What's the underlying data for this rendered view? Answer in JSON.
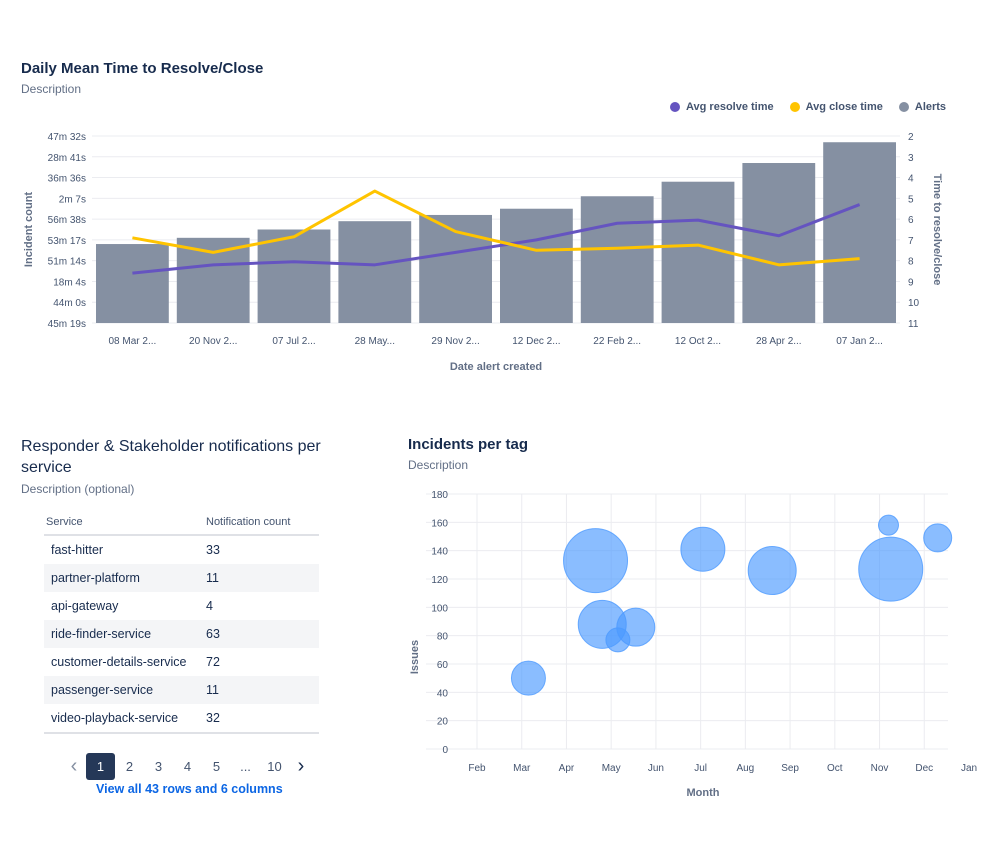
{
  "card1": {
    "title": "Daily Mean Time to Resolve/Close",
    "description": "Description",
    "legend": [
      {
        "label": "Avg resolve time",
        "color": "#6554c0"
      },
      {
        "label": "Avg close time",
        "color": "#ffc400"
      },
      {
        "label": "Alerts",
        "color": "#8590a2"
      }
    ]
  },
  "card2": {
    "title": "Responder & Stakeholder notifications per service",
    "description": "Description (optional)",
    "table": {
      "columns": [
        "Service",
        "Notification count"
      ],
      "rows": [
        [
          "fast-hitter",
          "33"
        ],
        [
          "partner-platform",
          "11"
        ],
        [
          "api-gateway",
          "4"
        ],
        [
          "ride-finder-service",
          "63"
        ],
        [
          "customer-details-service",
          "72"
        ],
        [
          "passenger-service",
          "11"
        ],
        [
          "video-playback-service",
          "32"
        ]
      ]
    },
    "pagination": {
      "prev": "‹",
      "pages": [
        "1",
        "2",
        "3",
        "4",
        "5",
        "...",
        "10"
      ],
      "current": "1",
      "next": "›"
    },
    "view_all": "View all 43 rows and 6 columns"
  },
  "card3": {
    "title": "Incidents per tag",
    "description": "Description"
  },
  "chart_data": [
    {
      "type": "bar+line",
      "title": "Daily Mean Time to Resolve/Close",
      "xlabel": "Date alert created",
      "ylabel": "Incident count",
      "y2label": "Time to resolve/close",
      "categories": [
        "08 Mar 2...",
        "20 Nov 2...",
        "07 Jul 2...",
        "28 May...",
        "29 Nov 2...",
        "12 Dec 2...",
        "22 Feb 2...",
        "12 Oct 2...",
        "28 Apr 2...",
        "07 Jan 2..."
      ],
      "y_tick_labels": [
        "47m 32s",
        "28m 41s",
        "36m 36s",
        "2m 7s",
        "56m 38s",
        "53m 17s",
        "51m 14s",
        "18m 4s",
        "44m 0s",
        "45m 19s"
      ],
      "y2_tick_labels": [
        "2",
        "3",
        "4",
        "5",
        "6",
        "7",
        "8",
        "9",
        "10",
        "11"
      ],
      "y2lim": [
        2,
        11
      ],
      "bar_series": {
        "name": "Alerts",
        "values": [
          3.8,
          4.1,
          4.5,
          4.9,
          5.2,
          5.5,
          6.1,
          6.8,
          7.7,
          8.7
        ],
        "ylim": [
          0,
          9
        ]
      },
      "line_series": [
        {
          "name": "Avg resolve time",
          "values": [
            8.6,
            8.2,
            8.05,
            8.2,
            7.6,
            7.0,
            6.2,
            6.05,
            6.8,
            5.3
          ]
        },
        {
          "name": "Avg close time",
          "values": [
            6.9,
            7.6,
            6.85,
            4.65,
            6.6,
            7.5,
            7.4,
            7.25,
            8.2,
            7.9
          ]
        }
      ]
    },
    {
      "type": "scatter",
      "title": "Incidents per tag",
      "xlabel": "Month",
      "ylabel": "Issues",
      "x_tick_labels": [
        "Feb",
        "Mar",
        "Apr",
        "May",
        "Jun",
        "Jul",
        "Aug",
        "Sep",
        "Oct",
        "Nov",
        "Dec",
        "Jan"
      ],
      "ylim": [
        0,
        180
      ],
      "y_ticks": [
        0,
        20,
        40,
        60,
        80,
        100,
        120,
        140,
        160,
        180
      ],
      "points": [
        {
          "x": 2.15,
          "y": 50,
          "size": 17
        },
        {
          "x": 3.65,
          "y": 133,
          "size": 32
        },
        {
          "x": 3.8,
          "y": 88,
          "size": 24
        },
        {
          "x": 4.15,
          "y": 77,
          "size": 12
        },
        {
          "x": 4.55,
          "y": 86,
          "size": 19
        },
        {
          "x": 6.05,
          "y": 141,
          "size": 22
        },
        {
          "x": 7.6,
          "y": 126,
          "size": 24
        },
        {
          "x": 10.25,
          "y": 127,
          "size": 32
        },
        {
          "x": 10.2,
          "y": 158,
          "size": 10
        },
        {
          "x": 11.3,
          "y": 149,
          "size": 14
        }
      ]
    }
  ]
}
